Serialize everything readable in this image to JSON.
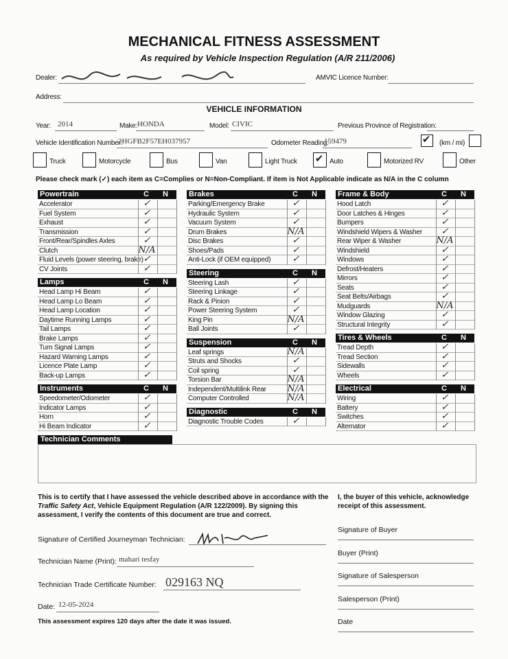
{
  "header": {
    "title": "MECHANICAL FITNESS ASSESSMENT",
    "subtitle": "As required by Vehicle Inspection Regulation (A/R 211/2006)"
  },
  "dealer": {
    "dealer_label": "Dealer:",
    "licence_label": "AMVIC Licence Number:",
    "address_label": "Address:"
  },
  "vehicle": {
    "title": "VEHICLE INFORMATION",
    "year": {
      "label": "Year:",
      "value": "2014"
    },
    "make": {
      "label": "Make:",
      "value": "HONDA"
    },
    "model": {
      "label": "Model:",
      "value": "CIVIC"
    },
    "province": {
      "label": "Previous Province of Registration:"
    },
    "vin": {
      "label": "Vehicle Identification Number:",
      "value": "2HGFB2F57EH037957"
    },
    "odometer": {
      "label": "Odometer Reading:",
      "value": "159479"
    },
    "unit": {
      "label": "(km / mi)",
      "km_checked": true
    },
    "types": [
      {
        "label": "Truck",
        "checked": false
      },
      {
        "label": "Motorcycle",
        "checked": false
      },
      {
        "label": "Bus",
        "checked": false
      },
      {
        "label": "Van",
        "checked": false
      },
      {
        "label": "Light Truck",
        "checked": false
      },
      {
        "label": "Auto",
        "checked": true
      },
      {
        "label": "Motorized RV",
        "checked": false
      },
      {
        "label": "Other",
        "checked": false
      }
    ]
  },
  "instructions": "Please check mark (✓) each item as C=Complies or N=Non-Compliant. If item is Not Applicable indicate as N/A in the C column",
  "columns": [
    [
      {
        "title": "Powertrain",
        "c": "C",
        "n": "N",
        "items": [
          {
            "label": "Accelerator",
            "mark": "✓"
          },
          {
            "label": "Fuel System",
            "mark": "✓"
          },
          {
            "label": "Exhaust",
            "mark": "✓"
          },
          {
            "label": "Transmission",
            "mark": "✓"
          },
          {
            "label": "Front/Rear/Spindles Axles",
            "mark": "✓"
          },
          {
            "label": "Clutch",
            "mark": "N/A"
          },
          {
            "label": "Fluid Levels (power steering, brake)",
            "mark": "✓"
          },
          {
            "label": "CV Joints",
            "mark": "✓"
          }
        ]
      },
      {
        "title": "Lamps",
        "c": "C",
        "n": "N",
        "items": [
          {
            "label": "Head Lamp Hi Beam",
            "mark": "✓"
          },
          {
            "label": "Head Lamp Lo Beam",
            "mark": "✓"
          },
          {
            "label": "Head Lamp Location",
            "mark": "✓"
          },
          {
            "label": "Daytime Running Lamps",
            "mark": "✓"
          },
          {
            "label": "Tail Lamps",
            "mark": "✓"
          },
          {
            "label": "Brake Lamps",
            "mark": "✓"
          },
          {
            "label": "Turn Signal Lamps",
            "mark": "✓"
          },
          {
            "label": "Hazard Warning Lamps",
            "mark": "✓"
          },
          {
            "label": "Licence Plate Lamp",
            "mark": "✓"
          },
          {
            "label": "Back-up Lamps",
            "mark": "✓"
          }
        ]
      },
      {
        "title": "Instruments",
        "c": "C",
        "n": "N",
        "items": [
          {
            "label": "Speedometer/Odometer",
            "mark": "✓"
          },
          {
            "label": "Indicator Lamps",
            "mark": "✓"
          },
          {
            "label": "Horn",
            "mark": "✓"
          },
          {
            "label": "Hi Beam Indicator",
            "mark": "✓"
          }
        ]
      }
    ],
    [
      {
        "title": "Brakes",
        "c": "C",
        "n": "N",
        "items": [
          {
            "label": "Parking/Emergency Brake",
            "mark": "✓"
          },
          {
            "label": "Hydraulic System",
            "mark": "✓"
          },
          {
            "label": "Vacuum System",
            "mark": "✓"
          },
          {
            "label": "Drum Brakes",
            "mark": "N/A"
          },
          {
            "label": "Disc Brakes",
            "mark": "✓"
          },
          {
            "label": "Shoes/Pads",
            "mark": "✓"
          },
          {
            "label": "Anti-Lock (if OEM equipped)",
            "mark": "✓"
          }
        ]
      },
      {
        "title": "Steering",
        "c": "C",
        "n": "N",
        "items": [
          {
            "label": "Steering Lash",
            "mark": "✓"
          },
          {
            "label": "Steering Linkage",
            "mark": "✓"
          },
          {
            "label": "Rack & Pinion",
            "mark": "✓"
          },
          {
            "label": "Power Steering System",
            "mark": "✓"
          },
          {
            "label": "King Pin",
            "mark": "N/A"
          },
          {
            "label": "Ball Joints",
            "mark": "✓"
          }
        ]
      },
      {
        "title": "Suspension",
        "c": "C",
        "n": "N",
        "items": [
          {
            "label": "Leaf springs",
            "mark": "N/A"
          },
          {
            "label": "Struts and Shocks",
            "mark": "✓"
          },
          {
            "label": "Coil spring",
            "mark": "✓"
          },
          {
            "label": "Torsion Bar",
            "mark": "N/A"
          },
          {
            "label": "Independent/Multilink Rear",
            "mark": "N/A"
          },
          {
            "label": "Computer Controlled",
            "mark": "N/A"
          }
        ]
      },
      {
        "title": "Diagnostic",
        "c": "C",
        "n": "N",
        "items": [
          {
            "label": "Diagnostic Trouble Codes",
            "mark": "✓"
          }
        ]
      }
    ],
    [
      {
        "title": "Frame & Body",
        "c": "C",
        "n": "N",
        "items": [
          {
            "label": "Hood Latch",
            "mark": "✓"
          },
          {
            "label": "Door Latches & Hinges",
            "mark": "✓"
          },
          {
            "label": "Bumpers",
            "mark": "✓"
          },
          {
            "label": "Windshield Wipers & Washer",
            "mark": "✓"
          },
          {
            "label": "Rear Wiper & Washer",
            "mark": "N/A"
          },
          {
            "label": "Windshield",
            "mark": "✓"
          },
          {
            "label": "Windows",
            "mark": "✓"
          },
          {
            "label": "Defrost/Heaters",
            "mark": "✓"
          },
          {
            "label": "Mirrors",
            "mark": "✓"
          },
          {
            "label": "Seats",
            "mark": "✓"
          },
          {
            "label": "Seat Belts/Airbags",
            "mark": "✓"
          },
          {
            "label": "Mudguards",
            "mark": "N/A"
          },
          {
            "label": "Window Glazing",
            "mark": "✓"
          },
          {
            "label": "Structural Integrity",
            "mark": "✓"
          }
        ]
      },
      {
        "title": "Tires & Wheels",
        "c": "C",
        "n": "N",
        "items": [
          {
            "label": "Tread Depth",
            "mark": "✓"
          },
          {
            "label": "Tread Section",
            "mark": "✓"
          },
          {
            "label": "Sidewalls",
            "mark": "✓"
          },
          {
            "label": "Wheels",
            "mark": "✓"
          }
        ]
      },
      {
        "title": "Electrical",
        "c": "C",
        "n": "N",
        "items": [
          {
            "label": "Wiring",
            "mark": "✓"
          },
          {
            "label": "Battery",
            "mark": "✓"
          },
          {
            "label": "Switches",
            "mark": "✓"
          },
          {
            "label": "Alternator",
            "mark": "✓"
          }
        ]
      }
    ]
  ],
  "comments": {
    "title": "Technician Comments"
  },
  "certification": {
    "text_before": "This is to certify that I have assessed the vehicle described above in accordance with the ",
    "act": "Traffic Safety Act",
    "text_after": ", Vehicle Equipment Regulation (A/R 122/2009).  By signing this assessment, I verify the contents of this document are true and correct.",
    "fields": [
      {
        "label": "Signature of Certified Journeyman Technician:"
      },
      {
        "label": "Technician Name (Print):",
        "value": "mahari tesfay"
      },
      {
        "label": "Technician Trade Certificate Number:",
        "value": "029163 NQ"
      },
      {
        "label": "Date:",
        "value": "12-05-2024"
      }
    ],
    "expiry": "This assessment expires 120 days after the date it was issued."
  },
  "buyer": {
    "text": "I, the buyer of this vehicle, acknowledge receipt of this assessment.",
    "fields": [
      "Signature of Buyer",
      "Buyer (Print)",
      "Signature of Salesperson",
      "Salesperson (Print)",
      "Date"
    ]
  }
}
